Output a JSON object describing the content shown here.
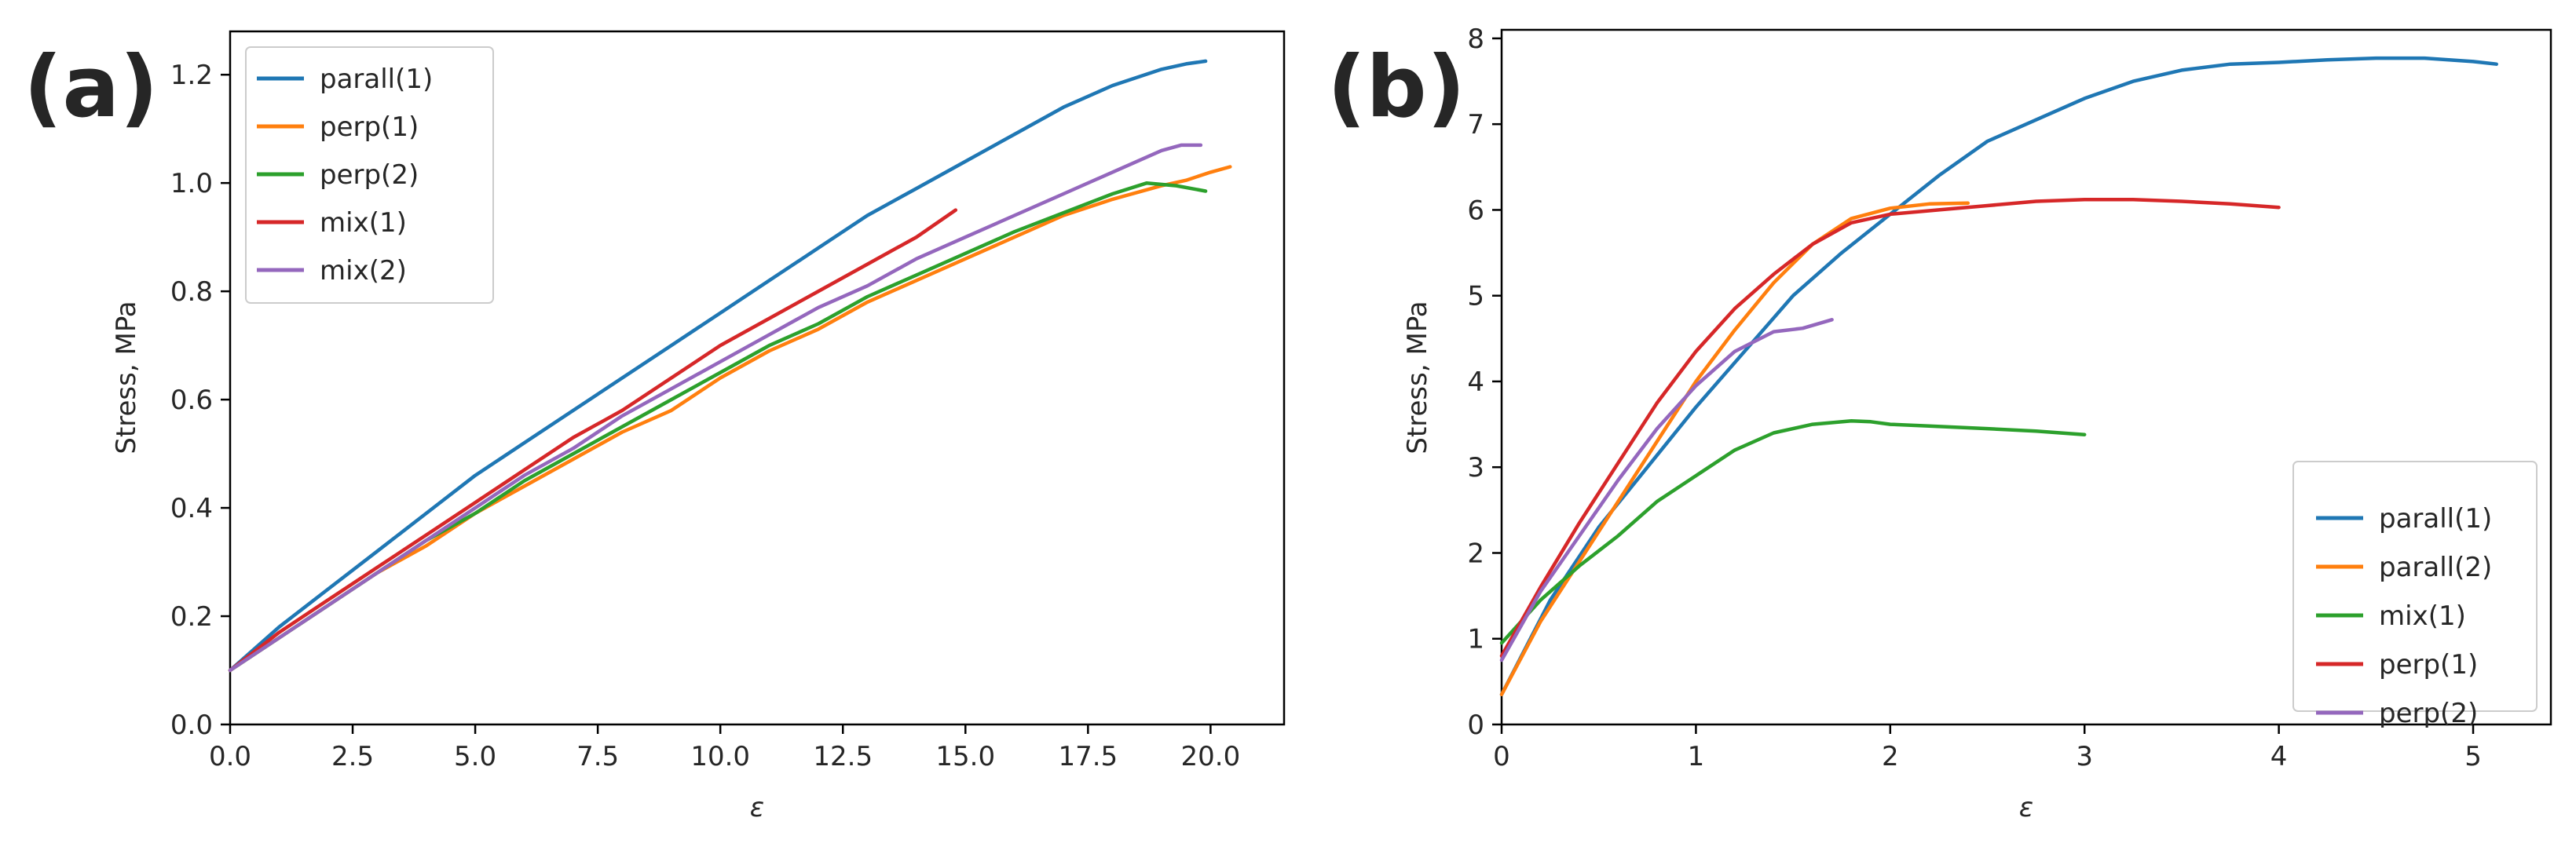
{
  "figure": {
    "panels": [
      {
        "label": "(a)",
        "chart_data": {
          "type": "line",
          "title": "",
          "xlabel": "ε",
          "ylabel": "Stress, MPa",
          "xlim": [
            0.0,
            21.5
          ],
          "ylim": [
            0.0,
            1.28
          ],
          "xticks": [
            0,
            2.5,
            5,
            7.5,
            10,
            12.5,
            15,
            17.5,
            20
          ],
          "xtick_labels": [
            "0.0",
            "2.5",
            "5.0",
            "7.5",
            "10.0",
            "12.5",
            "15.0",
            "17.5",
            "20.0"
          ],
          "yticks": [
            0,
            0.2,
            0.4,
            0.6,
            0.8,
            1.0,
            1.2
          ],
          "ytick_labels": [
            "0.0",
            "0.2",
            "0.4",
            "0.6",
            "0.8",
            "1.0",
            "1.2"
          ],
          "grid": false,
          "legend_position": "top-left",
          "series": [
            {
              "name": "parall(1)",
              "color": "#1f77b4",
              "x": [
                0,
                1,
                2,
                3,
                4,
                5,
                6,
                7,
                8,
                9,
                10,
                11,
                12,
                13,
                14,
                15,
                16,
                17,
                18,
                19,
                19.5,
                19.9
              ],
              "y": [
                0.1,
                0.18,
                0.25,
                0.32,
                0.39,
                0.46,
                0.52,
                0.58,
                0.64,
                0.7,
                0.76,
                0.82,
                0.88,
                0.94,
                0.99,
                1.04,
                1.09,
                1.14,
                1.18,
                1.21,
                1.22,
                1.225
              ]
            },
            {
              "name": "perp(1)",
              "color": "#ff7f0e",
              "x": [
                0,
                1,
                2,
                3,
                4,
                5,
                6,
                7,
                8,
                9,
                10,
                11,
                12,
                13,
                14,
                15,
                16,
                17,
                18,
                19,
                19.5,
                20,
                20.4
              ],
              "y": [
                0.1,
                0.16,
                0.22,
                0.28,
                0.33,
                0.39,
                0.44,
                0.49,
                0.54,
                0.58,
                0.64,
                0.69,
                0.73,
                0.78,
                0.82,
                0.86,
                0.9,
                0.94,
                0.97,
                0.995,
                1.005,
                1.02,
                1.03
              ]
            },
            {
              "name": "perp(2)",
              "color": "#2ca02c",
              "x": [
                0,
                1,
                2,
                3,
                4,
                5,
                6,
                7,
                8,
                9,
                10,
                11,
                12,
                13,
                14,
                15,
                16,
                17,
                18,
                18.7,
                19.3,
                19.9
              ],
              "y": [
                0.1,
                0.16,
                0.22,
                0.28,
                0.34,
                0.39,
                0.45,
                0.5,
                0.55,
                0.6,
                0.65,
                0.7,
                0.74,
                0.79,
                0.83,
                0.87,
                0.91,
                0.945,
                0.98,
                1.0,
                0.995,
                0.985
              ]
            },
            {
              "name": "mix(1)",
              "color": "#d62728",
              "x": [
                0,
                1,
                2,
                3,
                4,
                5,
                6,
                7,
                8,
                9,
                10,
                11,
                12,
                13,
                14,
                14.8
              ],
              "y": [
                0.1,
                0.17,
                0.23,
                0.29,
                0.35,
                0.41,
                0.47,
                0.53,
                0.58,
                0.64,
                0.7,
                0.75,
                0.8,
                0.85,
                0.9,
                0.95
              ]
            },
            {
              "name": "mix(2)",
              "color": "#9467bd",
              "x": [
                0,
                1,
                2,
                3,
                4,
                5,
                6,
                7,
                8,
                9,
                10,
                11,
                12,
                13,
                14,
                15,
                16,
                17,
                18,
                19,
                19.4,
                19.8
              ],
              "y": [
                0.1,
                0.16,
                0.22,
                0.28,
                0.34,
                0.4,
                0.46,
                0.51,
                0.57,
                0.62,
                0.67,
                0.72,
                0.77,
                0.81,
                0.86,
                0.9,
                0.94,
                0.98,
                1.02,
                1.06,
                1.07,
                1.07
              ]
            }
          ]
        }
      },
      {
        "label": "(b)",
        "chart_data": {
          "type": "line",
          "title": "",
          "xlabel": "ε",
          "ylabel": "Stress, MPa",
          "xlim": [
            0,
            5.4
          ],
          "ylim": [
            0,
            8.1
          ],
          "xticks": [
            0,
            1,
            2,
            3,
            4,
            5
          ],
          "xtick_labels": [
            "0",
            "1",
            "2",
            "3",
            "4",
            "5"
          ],
          "yticks": [
            0,
            1,
            2,
            3,
            4,
            5,
            6,
            7,
            8
          ],
          "ytick_labels": [
            "0",
            "1",
            "2",
            "3",
            "4",
            "5",
            "6",
            "7",
            "8"
          ],
          "grid": false,
          "legend_position": "bottom-right",
          "series": [
            {
              "name": "parall(1)",
              "color": "#1f77b4",
              "x": [
                0,
                0.25,
                0.5,
                0.75,
                1,
                1.25,
                1.5,
                1.75,
                2,
                2.25,
                2.5,
                2.75,
                3,
                3.25,
                3.5,
                3.75,
                4,
                4.25,
                4.5,
                4.75,
                5,
                5.12
              ],
              "y": [
                0.35,
                1.45,
                2.3,
                3.0,
                3.7,
                4.35,
                5.0,
                5.5,
                5.95,
                6.4,
                6.8,
                7.05,
                7.3,
                7.5,
                7.63,
                7.7,
                7.72,
                7.75,
                7.77,
                7.77,
                7.73,
                7.7
              ]
            },
            {
              "name": "parall(2)",
              "color": "#ff7f0e",
              "x": [
                0,
                0.2,
                0.4,
                0.6,
                0.8,
                1,
                1.2,
                1.4,
                1.6,
                1.8,
                2,
                2.2,
                2.4
              ],
              "y": [
                0.35,
                1.2,
                1.9,
                2.6,
                3.3,
                4.0,
                4.6,
                5.15,
                5.6,
                5.9,
                6.02,
                6.07,
                6.08
              ]
            },
            {
              "name": "mix(1)",
              "color": "#2ca02c",
              "x": [
                0,
                0.2,
                0.4,
                0.6,
                0.8,
                1,
                1.2,
                1.4,
                1.6,
                1.8,
                1.9,
                2,
                2.2,
                2.5,
                2.75,
                3.0
              ],
              "y": [
                0.95,
                1.45,
                1.85,
                2.2,
                2.6,
                2.9,
                3.2,
                3.4,
                3.5,
                3.54,
                3.53,
                3.5,
                3.48,
                3.45,
                3.42,
                3.38
              ]
            },
            {
              "name": "perp(1)",
              "color": "#d62728",
              "x": [
                0,
                0.2,
                0.4,
                0.6,
                0.8,
                1,
                1.2,
                1.4,
                1.6,
                1.8,
                2,
                2.25,
                2.5,
                2.75,
                3,
                3.25,
                3.5,
                3.75,
                4.0
              ],
              "y": [
                0.8,
                1.6,
                2.35,
                3.05,
                3.75,
                4.35,
                4.85,
                5.25,
                5.6,
                5.85,
                5.95,
                6.0,
                6.05,
                6.1,
                6.12,
                6.12,
                6.1,
                6.07,
                6.03
              ]
            },
            {
              "name": "perp(2)",
              "color": "#9467bd",
              "x": [
                0,
                0.2,
                0.4,
                0.6,
                0.8,
                1,
                1.2,
                1.4,
                1.55,
                1.7
              ],
              "y": [
                0.75,
                1.55,
                2.2,
                2.85,
                3.45,
                3.95,
                4.35,
                4.58,
                4.62,
                4.72
              ]
            }
          ]
        }
      }
    ]
  }
}
